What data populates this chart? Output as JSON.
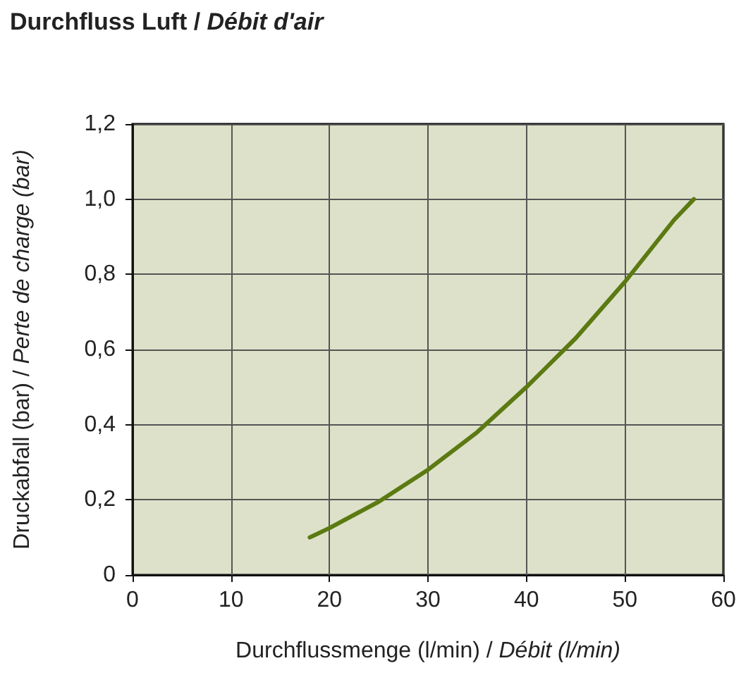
{
  "chart_data": {
    "type": "line",
    "title": "Durchfluss Luft / Débit d'air",
    "xlabel": "Durchflussmenge (l/min) / Débit (l/min)",
    "ylabel": "Druckabfall (bar) / Perte de charge (bar)",
    "x": [
      18,
      20,
      25,
      30,
      35,
      40,
      45,
      50,
      55,
      57
    ],
    "series": [
      {
        "color": "#5b7a12",
        "values": [
          0.1,
          0.125,
          0.195,
          0.28,
          0.38,
          0.5,
          0.63,
          0.78,
          0.945,
          1.0
        ]
      }
    ],
    "xlim": [
      0,
      60
    ],
    "xticks": [
      0,
      10,
      20,
      30,
      40,
      50,
      60
    ],
    "ylim": [
      0,
      1.2
    ],
    "yticks": [
      {
        "value": 0,
        "label": "0"
      },
      {
        "value": 0.2,
        "label": "0,2"
      },
      {
        "value": 0.4,
        "label": "0,4"
      },
      {
        "value": 0.6,
        "label": "0,6"
      },
      {
        "value": 0.8,
        "label": "0,8"
      },
      {
        "value": 1.0,
        "label": "1,0"
      },
      {
        "value": 1.2,
        "label": "1,2"
      }
    ],
    "grid": true,
    "marker": "none",
    "line_style": "solid"
  }
}
